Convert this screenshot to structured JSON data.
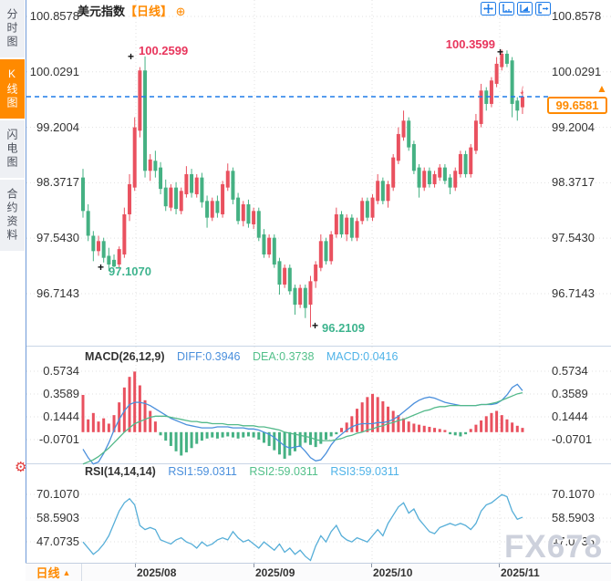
{
  "sidebar": {
    "items": [
      {
        "label": "分时图"
      },
      {
        "label": "K线图"
      },
      {
        "label": "闪电图"
      },
      {
        "label": "合约资料"
      }
    ],
    "active_index": 1
  },
  "header": {
    "title": "美元指数",
    "period_tag": "【日线】"
  },
  "icons": {
    "add": "⊕",
    "settings": "⚙",
    "up_arrow": "▲",
    "down_arrow": "↓",
    "period_caret": "▲",
    "plus_mark": "+"
  },
  "annotations": {
    "high_left": "100.2599",
    "high_right": "100.3599",
    "low_left": "97.1070",
    "low_mid": "96.2109"
  },
  "current_price": "99.6581",
  "indicators": {
    "macd": {
      "label": "MACD(26,12,9)",
      "diff_label": "DIFF:0.3946",
      "dea_label": "DEA:0.3738",
      "macd_label": "MACD:0.0416"
    },
    "rsi": {
      "label": "RSI(14,14,14)",
      "rsi1_label": "RSI1:59.0311",
      "rsi2_label": "RSI2:59.0311",
      "rsi3_label": "RSI3:59.0311"
    }
  },
  "time_axis": {
    "period_label": "日线",
    "dates": [
      "2025/08",
      "2025/09",
      "2025/10",
      "2025/11"
    ]
  },
  "watermark": "FX678",
  "colors": {
    "up": "#e9515f",
    "down": "#45b183",
    "diff_line": "#4a8fdc",
    "dea_line": "#53b98a",
    "rsi_line": "#56aed8",
    "accent_orange": "#ff8a00",
    "price_line": "#1f7ce8",
    "grid": "#e0e0e0",
    "separator": "#c9d6e6",
    "label": "#333333"
  },
  "chart_data": [
    {
      "type": "candlestick",
      "title": "美元指数 日线 (US Dollar Index, daily)",
      "x_axis_labels": [
        "2025/08",
        "2025/09",
        "2025/10",
        "2025/11"
      ],
      "y_ticks": [
        100.8578,
        100.0291,
        99.2004,
        98.3717,
        97.543,
        96.7143
      ],
      "ylim": [
        96.2,
        100.95
      ],
      "grid": "dotted",
      "marked_high_1": 100.2599,
      "marked_high_2": 100.3599,
      "marked_low_1": 97.107,
      "marked_low_2": 96.2109,
      "last_price": 99.6581,
      "ohlc": [
        [
          98.45,
          98.58,
          97.85,
          97.95
        ],
        [
          97.95,
          98.05,
          97.5,
          97.58
        ],
        [
          97.58,
          97.65,
          97.2,
          97.35
        ],
        [
          97.35,
          97.58,
          97.28,
          97.5
        ],
        [
          97.5,
          97.55,
          97.18,
          97.25
        ],
        [
          97.28,
          97.4,
          97.05,
          97.15
        ],
        [
          97.22,
          97.3,
          97.107,
          97.12
        ],
        [
          97.15,
          97.42,
          97.1,
          97.38
        ],
        [
          97.3,
          98.0,
          97.25,
          97.9
        ],
        [
          97.9,
          98.5,
          97.8,
          98.35
        ],
        [
          98.3,
          99.35,
          98.25,
          99.2
        ],
        [
          99.15,
          100.1,
          99.05,
          100.05
        ],
        [
          100.05,
          100.2599,
          98.45,
          98.55
        ],
        [
          98.55,
          98.8,
          98.4,
          98.72
        ],
        [
          98.7,
          98.85,
          98.45,
          98.55
        ],
        [
          98.6,
          98.68,
          98.2,
          98.28
        ],
        [
          98.3,
          98.42,
          97.95,
          98.02
        ],
        [
          98.0,
          98.35,
          97.95,
          98.3
        ],
        [
          98.3,
          98.38,
          97.9,
          97.98
        ],
        [
          97.95,
          98.3,
          97.9,
          98.25
        ],
        [
          98.2,
          98.62,
          98.15,
          98.5
        ],
        [
          98.5,
          98.58,
          98.15,
          98.22
        ],
        [
          98.2,
          98.5,
          98.15,
          98.45
        ],
        [
          98.45,
          98.52,
          98.0,
          98.08
        ],
        [
          98.1,
          98.18,
          97.7,
          97.85
        ],
        [
          97.85,
          98.15,
          97.8,
          98.1
        ],
        [
          98.1,
          98.18,
          97.85,
          97.92
        ],
        [
          97.9,
          98.4,
          97.85,
          98.35
        ],
        [
          98.3,
          98.66,
          98.25,
          98.55
        ],
        [
          98.55,
          98.6,
          98.05,
          98.12
        ],
        [
          98.15,
          98.22,
          97.75,
          97.8
        ],
        [
          97.8,
          98.1,
          97.72,
          98.05
        ],
        [
          98.05,
          98.12,
          97.7,
          97.76
        ],
        [
          97.75,
          98.0,
          97.68,
          97.95
        ],
        [
          97.95,
          98.0,
          97.5,
          97.55
        ],
        [
          97.6,
          97.68,
          97.25,
          97.3
        ],
        [
          97.3,
          97.6,
          97.25,
          97.55
        ],
        [
          97.55,
          97.6,
          97.1,
          97.15
        ],
        [
          97.2,
          97.25,
          96.7,
          96.85
        ],
        [
          96.85,
          97.15,
          96.8,
          97.1
        ],
        [
          97.1,
          97.15,
          96.7,
          96.75
        ],
        [
          96.8,
          96.85,
          96.4,
          96.55
        ],
        [
          96.55,
          96.85,
          96.5,
          96.8
        ],
        [
          96.8,
          96.85,
          96.35,
          96.5
        ],
        [
          96.55,
          96.98,
          96.2109,
          96.9
        ],
        [
          96.9,
          97.2,
          96.8,
          97.15
        ],
        [
          97.1,
          97.6,
          97.05,
          97.5
        ],
        [
          97.5,
          97.55,
          97.15,
          97.2
        ],
        [
          97.2,
          97.65,
          97.15,
          97.6
        ],
        [
          97.6,
          98.0,
          97.55,
          97.9
        ],
        [
          97.9,
          97.95,
          97.55,
          97.6
        ],
        [
          97.6,
          97.9,
          97.5,
          97.85
        ],
        [
          97.85,
          97.9,
          97.5,
          97.55
        ],
        [
          97.55,
          97.85,
          97.5,
          97.8
        ],
        [
          97.8,
          98.15,
          97.75,
          98.1
        ],
        [
          98.1,
          98.15,
          97.8,
          97.85
        ],
        [
          97.85,
          98.2,
          97.8,
          98.15
        ],
        [
          98.1,
          98.5,
          98.05,
          98.4
        ],
        [
          98.4,
          98.45,
          98.05,
          98.1
        ],
        [
          98.1,
          98.4,
          98.0,
          98.35
        ],
        [
          98.3,
          98.8,
          98.25,
          98.75
        ],
        [
          98.7,
          99.2,
          98.65,
          99.1
        ],
        [
          99.05,
          99.45,
          99.0,
          99.3
        ],
        [
          99.3,
          99.35,
          98.85,
          98.9
        ],
        [
          98.95,
          99.0,
          98.5,
          98.55
        ],
        [
          98.6,
          98.65,
          98.15,
          98.3
        ],
        [
          98.3,
          98.6,
          98.25,
          98.55
        ],
        [
          98.55,
          98.6,
          98.3,
          98.35
        ],
        [
          98.35,
          98.55,
          98.3,
          98.5
        ],
        [
          98.45,
          98.65,
          98.4,
          98.6
        ],
        [
          98.6,
          98.65,
          98.35,
          98.4
        ],
        [
          98.45,
          98.5,
          98.2,
          98.3
        ],
        [
          98.3,
          98.6,
          98.25,
          98.55
        ],
        [
          98.5,
          98.85,
          98.45,
          98.8
        ],
        [
          98.8,
          98.85,
          98.45,
          98.5
        ],
        [
          98.5,
          98.95,
          98.45,
          98.9
        ],
        [
          98.85,
          99.4,
          98.8,
          99.3
        ],
        [
          99.25,
          99.85,
          99.2,
          99.75
        ],
        [
          99.75,
          99.8,
          99.45,
          99.55
        ],
        [
          99.55,
          99.95,
          99.5,
          99.9
        ],
        [
          99.85,
          100.25,
          99.8,
          100.15
        ],
        [
          100.1,
          100.3599,
          100.05,
          100.3
        ],
        [
          100.3,
          100.35,
          100.1,
          100.15
        ],
        [
          100.2,
          100.25,
          99.35,
          99.55
        ],
        [
          99.6,
          99.65,
          99.3,
          99.45
        ],
        [
          99.5,
          99.75,
          99.4,
          99.6581
        ]
      ]
    },
    {
      "type": "bar+line",
      "name": "MACD(26,12,9)",
      "y_ticks": [
        0.5734,
        0.3589,
        0.1444,
        -0.0701
      ],
      "current": {
        "diff": 0.3946,
        "dea": 0.3738,
        "macd": 0.0416
      },
      "hist": [
        0.35,
        0.12,
        0.18,
        0.1,
        0.13,
        0.08,
        0.16,
        0.28,
        0.42,
        0.52,
        0.57,
        0.44,
        0.3,
        0.2,
        0.1,
        -0.03,
        -0.08,
        -0.13,
        -0.18,
        -0.22,
        -0.19,
        -0.15,
        -0.11,
        -0.08,
        -0.06,
        -0.05,
        -0.06,
        -0.05,
        -0.04,
        -0.05,
        -0.06,
        -0.05,
        -0.04,
        -0.05,
        -0.07,
        -0.1,
        -0.13,
        -0.17,
        -0.21,
        -0.25,
        -0.22,
        -0.18,
        -0.14,
        -0.1,
        -0.12,
        -0.14,
        -0.11,
        -0.07,
        -0.04,
        -0.02,
        0.04,
        0.09,
        0.15,
        0.22,
        0.28,
        0.33,
        0.36,
        0.33,
        0.29,
        0.24,
        0.2,
        0.16,
        0.13,
        0.1,
        0.08,
        0.07,
        0.06,
        0.05,
        0.04,
        0.03,
        0.02,
        -0.02,
        -0.03,
        -0.04,
        -0.02,
        0.03,
        0.07,
        0.11,
        0.15,
        0.18,
        0.2,
        0.16,
        0.12,
        0.09,
        0.06,
        0.04
      ],
      "diff": [
        -0.16,
        -0.24,
        -0.3,
        -0.28,
        -0.2,
        -0.1,
        0.02,
        0.12,
        0.2,
        0.26,
        0.28,
        0.28,
        0.27,
        0.25,
        0.22,
        0.19,
        0.16,
        0.13,
        0.11,
        0.09,
        0.07,
        0.06,
        0.05,
        0.04,
        0.04,
        0.04,
        0.05,
        0.05,
        0.05,
        0.04,
        0.04,
        0.04,
        0.03,
        0.03,
        0.02,
        0.0,
        -0.02,
        -0.05,
        -0.09,
        -0.13,
        -0.15,
        -0.14,
        -0.13,
        -0.18,
        -0.24,
        -0.27,
        -0.26,
        -0.2,
        -0.12,
        -0.06,
        -0.02,
        0.02,
        0.05,
        0.07,
        0.08,
        0.08,
        0.08,
        0.09,
        0.09,
        0.1,
        0.12,
        0.15,
        0.19,
        0.23,
        0.27,
        0.3,
        0.32,
        0.33,
        0.32,
        0.3,
        0.28,
        0.27,
        0.26,
        0.25,
        0.25,
        0.25,
        0.25,
        0.26,
        0.26,
        0.26,
        0.27,
        0.3,
        0.35,
        0.42,
        0.45,
        0.39
      ],
      "dea": [
        -0.3,
        -0.28,
        -0.26,
        -0.23,
        -0.19,
        -0.15,
        -0.1,
        -0.05,
        0.0,
        0.04,
        0.08,
        0.1,
        0.12,
        0.14,
        0.15,
        0.15,
        0.15,
        0.14,
        0.13,
        0.12,
        0.11,
        0.1,
        0.1,
        0.09,
        0.09,
        0.08,
        0.08,
        0.08,
        0.07,
        0.07,
        0.07,
        0.06,
        0.06,
        0.06,
        0.05,
        0.05,
        0.04,
        0.03,
        0.02,
        0.0,
        -0.01,
        -0.02,
        -0.03,
        -0.04,
        -0.05,
        -0.07,
        -0.08,
        -0.08,
        -0.08,
        -0.07,
        -0.06,
        -0.04,
        -0.03,
        -0.01,
        0.0,
        0.02,
        0.03,
        0.05,
        0.06,
        0.08,
        0.09,
        0.11,
        0.12,
        0.14,
        0.16,
        0.18,
        0.2,
        0.21,
        0.23,
        0.24,
        0.24,
        0.25,
        0.25,
        0.25,
        0.25,
        0.25,
        0.25,
        0.26,
        0.26,
        0.27,
        0.28,
        0.3,
        0.32,
        0.34,
        0.36,
        0.37
      ]
    },
    {
      "type": "line",
      "name": "RSI(14,14,14)",
      "y_ticks": [
        70.107,
        58.5903,
        47.0735
      ],
      "current": {
        "rsi1": 59.0311,
        "rsi2": 59.0311,
        "rsi3": 59.0311
      },
      "rsi": [
        47,
        44,
        41,
        43,
        46,
        50,
        56,
        62,
        66,
        68,
        65,
        55,
        53,
        54,
        53,
        48,
        47,
        46,
        48,
        49,
        47,
        46,
        44,
        47,
        45,
        46,
        48,
        49,
        48,
        52,
        49,
        47,
        48,
        46,
        44,
        47,
        45,
        43,
        46,
        42,
        44,
        41,
        43,
        40,
        38,
        45,
        50,
        47,
        52,
        55,
        50,
        48,
        47,
        49,
        48,
        47,
        50,
        53,
        50,
        56,
        60,
        64,
        66,
        61,
        63,
        58,
        55,
        52,
        51,
        54,
        55,
        56,
        55,
        56,
        55,
        53,
        56,
        62,
        65,
        66,
        68,
        70,
        69,
        62,
        58,
        59
      ]
    }
  ]
}
